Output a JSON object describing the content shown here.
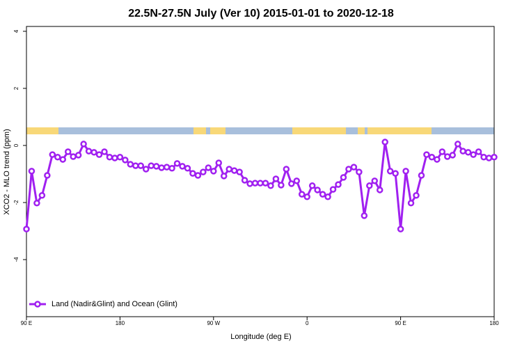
{
  "chart_data": {
    "type": "line",
    "title": "22.5N-27.5N July (Ver 10)   2015-01-01 to 2020-12-18",
    "x_label": "Longitude (deg E)",
    "y_label": "XCO2 - MLO trend (ppm)",
    "x": [
      90,
      95,
      100,
      105,
      110,
      115,
      120,
      125,
      130,
      135,
      140,
      145,
      150,
      155,
      160,
      165,
      170,
      175,
      180,
      185,
      190,
      195,
      200,
      205,
      210,
      215,
      220,
      225,
      230,
      235,
      240,
      245,
      250,
      255,
      260,
      265,
      270,
      275,
      280,
      285,
      290,
      295,
      300,
      305,
      310,
      315,
      320,
      325,
      330,
      335,
      340,
      345,
      350,
      355,
      360,
      365,
      370,
      375,
      380,
      385,
      390,
      395,
      400,
      405,
      410,
      415,
      420,
      425,
      430,
      435,
      440,
      445,
      450,
      455,
      460,
      465,
      470,
      475,
      480,
      485,
      490,
      495,
      500,
      505,
      510,
      515,
      520,
      525,
      530,
      535,
      540
    ],
    "series": [
      {
        "name": "Land (Nadir&Glint) and Ocean (Glint)",
        "color": "#a020f0",
        "values": [
          -2.93,
          -0.9,
          -2.02,
          -1.75,
          -1.05,
          -0.32,
          -0.41,
          -0.49,
          -0.22,
          -0.39,
          -0.34,
          0.05,
          -0.2,
          -0.24,
          -0.32,
          -0.22,
          -0.41,
          -0.44,
          -0.41,
          -0.51,
          -0.66,
          -0.71,
          -0.71,
          -0.83,
          -0.71,
          -0.73,
          -0.78,
          -0.76,
          -0.8,
          -0.63,
          -0.73,
          -0.8,
          -0.98,
          -1.05,
          -0.93,
          -0.78,
          -0.9,
          -0.61,
          -1.07,
          -0.83,
          -0.88,
          -0.93,
          -1.22,
          -1.34,
          -1.32,
          -1.32,
          -1.32,
          -1.41,
          -1.17,
          -1.39,
          -0.83,
          -1.34,
          -1.24,
          -1.71,
          -1.8,
          -1.41,
          -1.56,
          -1.71,
          -1.8,
          -1.54,
          -1.37,
          -1.12,
          -0.83,
          -0.76,
          -0.93,
          -2.46,
          -1.41,
          -1.24,
          -1.56,
          0.12,
          -0.9,
          -0.98,
          -2.93,
          -0.9,
          -2.02,
          -1.75,
          -1.05,
          -0.32,
          -0.41,
          -0.49,
          -0.22,
          -0.39,
          -0.34,
          0.05,
          -0.2,
          -0.24,
          -0.32,
          -0.22,
          -0.41,
          -0.44,
          -0.41
        ]
      }
    ],
    "xlim": [
      90,
      540
    ],
    "xticks": [
      {
        "value": 90,
        "label": "90 E"
      },
      180,
      {
        "value": 270,
        "label": "90 W"
      },
      {
        "value": 360,
        "label": "0"
      },
      {
        "value": 450,
        "label": "90 E"
      },
      {
        "value": 540,
        "label": "180"
      }
    ],
    "ylim": [
      -6,
      4.17
    ],
    "yticks": [
      -4,
      -2,
      0,
      2,
      4
    ],
    "legend": "bottom-left"
  }
}
